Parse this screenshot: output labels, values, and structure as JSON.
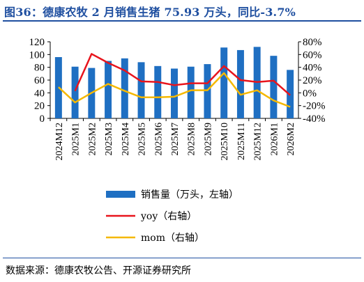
{
  "title": "图36：德康农牧 2 月销售生猪 75.93 万头，同比-3.7%",
  "source": "数据来源：德康农牧公告、开源证券研究所",
  "colors": {
    "title": "#1f4fa0",
    "bar": "#1f6fc2",
    "yoy": "#e8141c",
    "mom": "#f5b800"
  },
  "chart_data": {
    "type": "bar",
    "categories": [
      "2024M12",
      "2025M1",
      "2025M2",
      "2025M3",
      "2025M4",
      "2025M5",
      "2025M6",
      "2025M7",
      "2025M8",
      "2025M9",
      "2025M10",
      "2025M11",
      "2025M12",
      "2026M1",
      "2026M2"
    ],
    "ylim": [
      0,
      120
    ],
    "yticks": [
      "0",
      "20",
      "40",
      "60",
      "80",
      "100",
      "120"
    ],
    "y2lim": [
      -40,
      80
    ],
    "y2ticks": [
      "-40%",
      "-20%",
      "0%",
      "20%",
      "40%",
      "60%",
      "80%"
    ],
    "grid": false,
    "legend_position": "bottom",
    "series": [
      {
        "name": "销售量（万头，左轴）",
        "type": "bar",
        "axis": "left",
        "values": [
          96,
          81,
          79,
          90,
          94,
          88,
          82,
          78,
          81,
          85,
          111,
          107,
          112,
          98,
          75.93
        ]
      },
      {
        "name": "yoy（右轴）",
        "type": "line",
        "axis": "right",
        "values": [
          null,
          3,
          61,
          47,
          35,
          18,
          17,
          12,
          15,
          15,
          42,
          20,
          17,
          19,
          -3.7
        ]
      },
      {
        "name": "mom（右轴）",
        "type": "line",
        "axis": "right",
        "values": [
          9,
          -15,
          0,
          14,
          3,
          -7,
          -7,
          -6,
          4,
          4,
          31,
          -3,
          4,
          -12,
          -22
        ]
      }
    ]
  }
}
